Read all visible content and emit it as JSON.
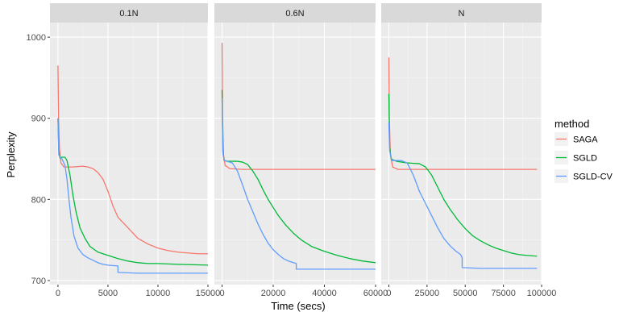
{
  "chart_data": {
    "type": "line",
    "xlabel": "Time (secs)",
    "ylabel": "Perplexity",
    "ylim": [
      695,
      1018
    ],
    "y_ticks": [
      700,
      800,
      900,
      1000
    ],
    "grid": true,
    "legend": {
      "title": "method",
      "placement": "right"
    },
    "colors": {
      "SAGA": "#F8766D",
      "SGLD": "#00BA38",
      "SGLD-CV": "#619CFF"
    },
    "panels": [
      {
        "label": "0.1N",
        "xlim": [
          -800,
          15000
        ],
        "x_ticks": [
          0,
          5000,
          10000,
          15000
        ],
        "x_tick_labels": [
          "0",
          "5000",
          "10000",
          "15000"
        ],
        "series": [
          {
            "name": "SAGA",
            "values": [
              [
                0,
                965
              ],
              [
                60,
                900
              ],
              [
                150,
                862
              ],
              [
                300,
                845
              ],
              [
                600,
                840
              ],
              [
                1500,
                840
              ],
              [
                2500,
                841
              ],
              [
                3000,
                840
              ],
              [
                3500,
                838
              ],
              [
                4000,
                833
              ],
              [
                4500,
                825
              ],
              [
                5000,
                810
              ],
              [
                5500,
                792
              ],
              [
                6000,
                778
              ],
              [
                7000,
                765
              ],
              [
                8000,
                752
              ],
              [
                9000,
                745
              ],
              [
                10000,
                740
              ],
              [
                11000,
                737
              ],
              [
                12000,
                735
              ],
              [
                13000,
                734
              ],
              [
                14000,
                733
              ],
              [
                15000,
                733
              ]
            ]
          },
          {
            "name": "SGLD",
            "values": [
              [
                0,
                900
              ],
              [
                80,
                860
              ],
              [
                200,
                851
              ],
              [
                400,
                852
              ],
              [
                700,
                852
              ],
              [
                900,
                848
              ],
              [
                1200,
                830
              ],
              [
                1500,
                805
              ],
              [
                1800,
                785
              ],
              [
                2200,
                765
              ],
              [
                2700,
                752
              ],
              [
                3200,
                742
              ],
              [
                4000,
                735
              ],
              [
                5000,
                731
              ],
              [
                6000,
                727
              ],
              [
                7000,
                724
              ],
              [
                8000,
                722
              ],
              [
                9000,
                721
              ],
              [
                10000,
                721
              ],
              [
                12000,
                720
              ],
              [
                15000,
                719
              ]
            ]
          },
          {
            "name": "SGLD-CV",
            "values": [
              [
                0,
                900
              ],
              [
                80,
                855
              ],
              [
                200,
                852
              ],
              [
                400,
                850
              ],
              [
                700,
                842
              ],
              [
                900,
                825
              ],
              [
                1100,
                800
              ],
              [
                1300,
                778
              ],
              [
                1600,
                755
              ],
              [
                2000,
                740
              ],
              [
                2500,
                732
              ],
              [
                3000,
                728
              ],
              [
                3500,
                725
              ],
              [
                4000,
                722
              ],
              [
                4500,
                720
              ],
              [
                5000,
                719
              ],
              [
                6000,
                718
              ],
              [
                6001,
                710
              ],
              [
                8000,
                709
              ],
              [
                10000,
                709
              ],
              [
                12000,
                709
              ],
              [
                15000,
                709
              ]
            ]
          }
        ]
      },
      {
        "label": "0.6N",
        "xlim": [
          -3000,
          60000
        ],
        "x_ticks": [
          0,
          20000,
          40000,
          60000
        ],
        "x_tick_labels": [
          "0",
          "20000",
          "40000",
          "60000"
        ],
        "series": [
          {
            "name": "SAGA",
            "values": [
              [
                0,
                993
              ],
              [
                200,
                900
              ],
              [
                600,
                855
              ],
              [
                1200,
                842
              ],
              [
                3000,
                838
              ],
              [
                8000,
                837
              ],
              [
                20000,
                837
              ],
              [
                40000,
                837
              ],
              [
                60000,
                837
              ]
            ]
          },
          {
            "name": "SGLD",
            "values": [
              [
                0,
                935
              ],
              [
                300,
                860
              ],
              [
                800,
                848
              ],
              [
                2000,
                847
              ],
              [
                6000,
                847
              ],
              [
                8000,
                846
              ],
              [
                10000,
                843
              ],
              [
                12000,
                835
              ],
              [
                14000,
                825
              ],
              [
                16000,
                812
              ],
              [
                18000,
                800
              ],
              [
                20000,
                790
              ],
              [
                22000,
                780
              ],
              [
                25000,
                768
              ],
              [
                28000,
                758
              ],
              [
                31000,
                750
              ],
              [
                35000,
                742
              ],
              [
                40000,
                736
              ],
              [
                45000,
                731
              ],
              [
                50000,
                727
              ],
              [
                55000,
                724
              ],
              [
                60000,
                722
              ]
            ]
          },
          {
            "name": "SGLD-CV",
            "values": [
              [
                0,
                925
              ],
              [
                300,
                858
              ],
              [
                800,
                848
              ],
              [
                2000,
                847
              ],
              [
                4000,
                845
              ],
              [
                6000,
                835
              ],
              [
                8000,
                818
              ],
              [
                10000,
                800
              ],
              [
                12000,
                785
              ],
              [
                14000,
                770
              ],
              [
                16000,
                757
              ],
              [
                18000,
                746
              ],
              [
                20000,
                738
              ],
              [
                22000,
                732
              ],
              [
                24000,
                727
              ],
              [
                26000,
                724
              ],
              [
                28000,
                722
              ],
              [
                29000,
                721
              ],
              [
                29001,
                714
              ],
              [
                40000,
                714
              ],
              [
                60000,
                714
              ]
            ]
          }
        ]
      },
      {
        "label": "N",
        "xlim": [
          -5000,
          100000
        ],
        "x_ticks": [
          0,
          25000,
          50000,
          75000,
          100000
        ],
        "x_tick_labels": [
          "0",
          "25000",
          "50000",
          "75000",
          "100000"
        ],
        "series": [
          {
            "name": "SAGA",
            "values": [
              [
                0,
                975
              ],
              [
                300,
                900
              ],
              [
                1000,
                855
              ],
              [
                2500,
                840
              ],
              [
                6000,
                837
              ],
              [
                20000,
                837
              ],
              [
                50000,
                837
              ],
              [
                97000,
                837
              ]
            ]
          },
          {
            "name": "SGLD",
            "values": [
              [
                0,
                930
              ],
              [
                500,
                865
              ],
              [
                1500,
                850
              ],
              [
                5000,
                847
              ],
              [
                12000,
                845
              ],
              [
                20000,
                844
              ],
              [
                24000,
                840
              ],
              [
                28000,
                830
              ],
              [
                32000,
                815
              ],
              [
                36000,
                800
              ],
              [
                40000,
                788
              ],
              [
                45000,
                775
              ],
              [
                50000,
                764
              ],
              [
                55000,
                755
              ],
              [
                60000,
                749
              ],
              [
                65000,
                744
              ],
              [
                70000,
                740
              ],
              [
                75000,
                737
              ],
              [
                80000,
                734
              ],
              [
                85000,
                732
              ],
              [
                90000,
                731
              ],
              [
                97000,
                730
              ]
            ]
          },
          {
            "name": "SGLD-CV",
            "values": [
              [
                0,
                895
              ],
              [
                500,
                860
              ],
              [
                2000,
                848
              ],
              [
                5000,
                848
              ],
              [
                8000,
                848
              ],
              [
                12000,
                845
              ],
              [
                16000,
                830
              ],
              [
                20000,
                810
              ],
              [
                24000,
                795
              ],
              [
                28000,
                780
              ],
              [
                32000,
                765
              ],
              [
                36000,
                752
              ],
              [
                40000,
                743
              ],
              [
                44000,
                736
              ],
              [
                47000,
                732
              ],
              [
                48000,
                728
              ],
              [
                48001,
                716
              ],
              [
                60000,
                715
              ],
              [
                80000,
                715
              ],
              [
                97000,
                715
              ]
            ]
          }
        ]
      }
    ]
  }
}
